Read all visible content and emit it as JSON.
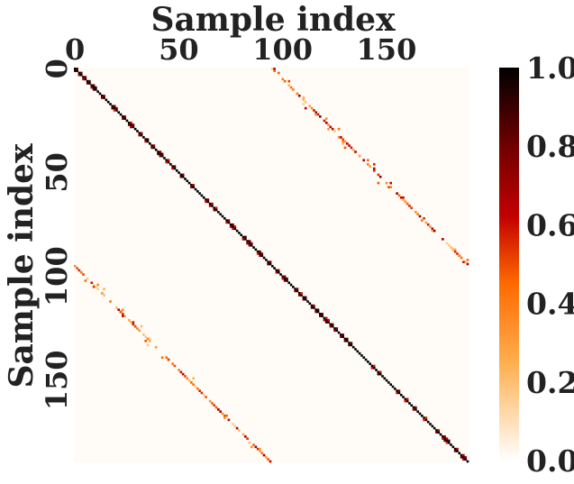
{
  "chart_data": {
    "type": "heatmap",
    "xlabel": "Sample index",
    "ylabel": "Sample index",
    "n": 190,
    "x_ticks": [
      0,
      50,
      100,
      150
    ],
    "y_ticks": [
      0,
      50,
      100,
      150
    ],
    "colorbar_ticks": [
      "0.0",
      "0.2",
      "0.4",
      "0.6",
      "0.8",
      "1.0"
    ],
    "value_range": [
      0,
      1
    ],
    "colormap": "gist_heat_r",
    "structure": {
      "main_diagonal": {
        "offset": 0,
        "value": 1.0
      },
      "off_diagonals": [
        {
          "description": "upper band",
          "row_start": 0,
          "col_start": 95,
          "row_end": 95,
          "col_end": 190,
          "typical_value": 0.45
        },
        {
          "description": "lower band",
          "row_start": 95,
          "col_start": 0,
          "row_end": 190,
          "col_end": 95,
          "typical_value": 0.45
        }
      ]
    }
  }
}
